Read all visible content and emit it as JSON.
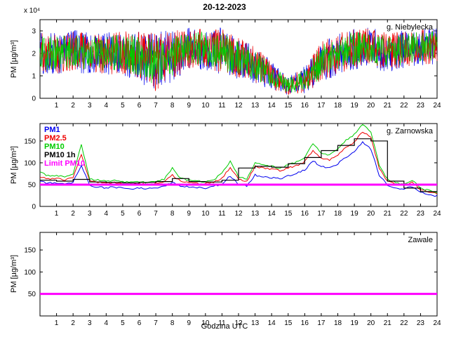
{
  "figure": {
    "title": "20-12-2023",
    "xlabel": "Godzina UTC",
    "ylabel": "PM [µg/m³]",
    "background": "#ffffff"
  },
  "chart_data": [
    {
      "type": "line",
      "station": "g. Niebylecka",
      "y_multiplier": "x 10⁴",
      "xlim": [
        0,
        24
      ],
      "ylim": [
        0,
        3.5
      ],
      "xticks": [
        1,
        2,
        3,
        4,
        5,
        6,
        7,
        8,
        9,
        10,
        11,
        12,
        13,
        14,
        15,
        16,
        17,
        18,
        19,
        20,
        21,
        22,
        23,
        24
      ],
      "yticks": [
        0,
        1,
        2,
        3
      ],
      "x": [
        0,
        1,
        2,
        3,
        4,
        5,
        6,
        7,
        8,
        9,
        10,
        11,
        12,
        13,
        14,
        15,
        16,
        17,
        18,
        19,
        20,
        21,
        22,
        23,
        24
      ],
      "envelope_center": [
        2.0,
        2.0,
        2.1,
        2.0,
        2.0,
        2.0,
        1.9,
        1.6,
        1.9,
        2.2,
        2.2,
        2.1,
        1.8,
        1.5,
        1.0,
        0.55,
        0.8,
        1.6,
        2.0,
        2.2,
        2.3,
        2.0,
        2.2,
        2.3,
        2.3
      ],
      "envelope_spread": [
        0.9,
        0.9,
        0.9,
        0.9,
        0.9,
        1.0,
        1.1,
        1.3,
        1.1,
        0.9,
        0.9,
        1.0,
        0.9,
        0.8,
        0.6,
        0.4,
        0.6,
        0.9,
        0.9,
        0.9,
        0.8,
        0.9,
        0.8,
        0.8,
        0.8
      ],
      "series": [
        {
          "name": "PM1",
          "color": "#0000ee",
          "spread_scale": 1.05
        },
        {
          "name": "PM2.5",
          "color": "#ee0000",
          "spread_scale": 1.0
        },
        {
          "name": "PM10",
          "color": "#00cc00",
          "spread_scale": 0.85
        }
      ]
    },
    {
      "type": "line",
      "station": "g. Zarnowska",
      "xlim": [
        0,
        24
      ],
      "ylim": [
        0,
        190
      ],
      "xticks": [
        1,
        2,
        3,
        4,
        5,
        6,
        7,
        8,
        9,
        10,
        11,
        12,
        13,
        14,
        15,
        16,
        17,
        18,
        19,
        20,
        21,
        22,
        23,
        24
      ],
      "yticks": [
        0,
        50,
        100,
        150
      ],
      "x": [
        0,
        0.5,
        1,
        1.5,
        2,
        2.5,
        3,
        3.5,
        4,
        4.5,
        5,
        5.5,
        6,
        6.5,
        7,
        7.5,
        8,
        8.5,
        9,
        9.5,
        10,
        10.5,
        11,
        11.5,
        12,
        12.5,
        13,
        13.5,
        14,
        14.5,
        15,
        15.5,
        16,
        16.5,
        17,
        17.5,
        18,
        18.5,
        19,
        19.5,
        20,
        20.5,
        21,
        21.5,
        22,
        22.5,
        23,
        23.5,
        24
      ],
      "series": [
        {
          "name": "PM1",
          "color": "#0000ee",
          "style": "line",
          "values": [
            58,
            53,
            54,
            50,
            55,
            95,
            47,
            44,
            43,
            44,
            42,
            41,
            42,
            40,
            43,
            46,
            56,
            47,
            45,
            43,
            42,
            46,
            52,
            70,
            50,
            47,
            72,
            68,
            66,
            64,
            70,
            76,
            84,
            104,
            92,
            88,
            98,
            112,
            124,
            148,
            132,
            72,
            48,
            42,
            40,
            46,
            32,
            27,
            24
          ]
        },
        {
          "name": "PM2.5",
          "color": "#ee0000",
          "style": "line",
          "values": [
            68,
            63,
            64,
            60,
            66,
            120,
            58,
            55,
            53,
            55,
            52,
            51,
            52,
            50,
            53,
            56,
            72,
            58,
            55,
            53,
            52,
            56,
            65,
            90,
            62,
            57,
            92,
            88,
            85,
            82,
            88,
            94,
            102,
            128,
            110,
            106,
            118,
            135,
            148,
            172,
            158,
            88,
            58,
            51,
            48,
            55,
            38,
            33,
            29
          ]
        },
        {
          "name": "PM10",
          "color": "#00cc00",
          "style": "line",
          "values": [
            78,
            70,
            72,
            66,
            74,
            142,
            64,
            60,
            58,
            60,
            57,
            55,
            56,
            54,
            58,
            62,
            88,
            64,
            60,
            58,
            57,
            62,
            75,
            105,
            68,
            62,
            100,
            95,
            92,
            88,
            95,
            102,
            112,
            145,
            122,
            118,
            132,
            152,
            165,
            188,
            172,
            95,
            62,
            55,
            52,
            60,
            42,
            36,
            32
          ]
        },
        {
          "name": "PM10 1h",
          "color": "#000000",
          "style": "step",
          "values": [
            60,
            58,
            62,
            56,
            55,
            54,
            55,
            57,
            64,
            57,
            56,
            60,
            88,
            92,
            90,
            98,
            112,
            128,
            140,
            155,
            150,
            58,
            42,
            34
          ]
        },
        {
          "name": "Limit PM10",
          "color": "#ff00ff",
          "style": "hline",
          "value": 50
        }
      ]
    },
    {
      "type": "line",
      "station": "Zawale",
      "xlim": [
        0,
        24
      ],
      "ylim": [
        0,
        190
      ],
      "xticks": [
        1,
        2,
        3,
        4,
        5,
        6,
        7,
        8,
        9,
        10,
        11,
        12,
        13,
        14,
        15,
        16,
        17,
        18,
        19,
        20,
        21,
        22,
        23,
        24
      ],
      "yticks": [
        50,
        100,
        150
      ],
      "series": [
        {
          "name": "Limit PM10",
          "color": "#ff00ff",
          "style": "hline",
          "value": 50
        }
      ]
    }
  ]
}
